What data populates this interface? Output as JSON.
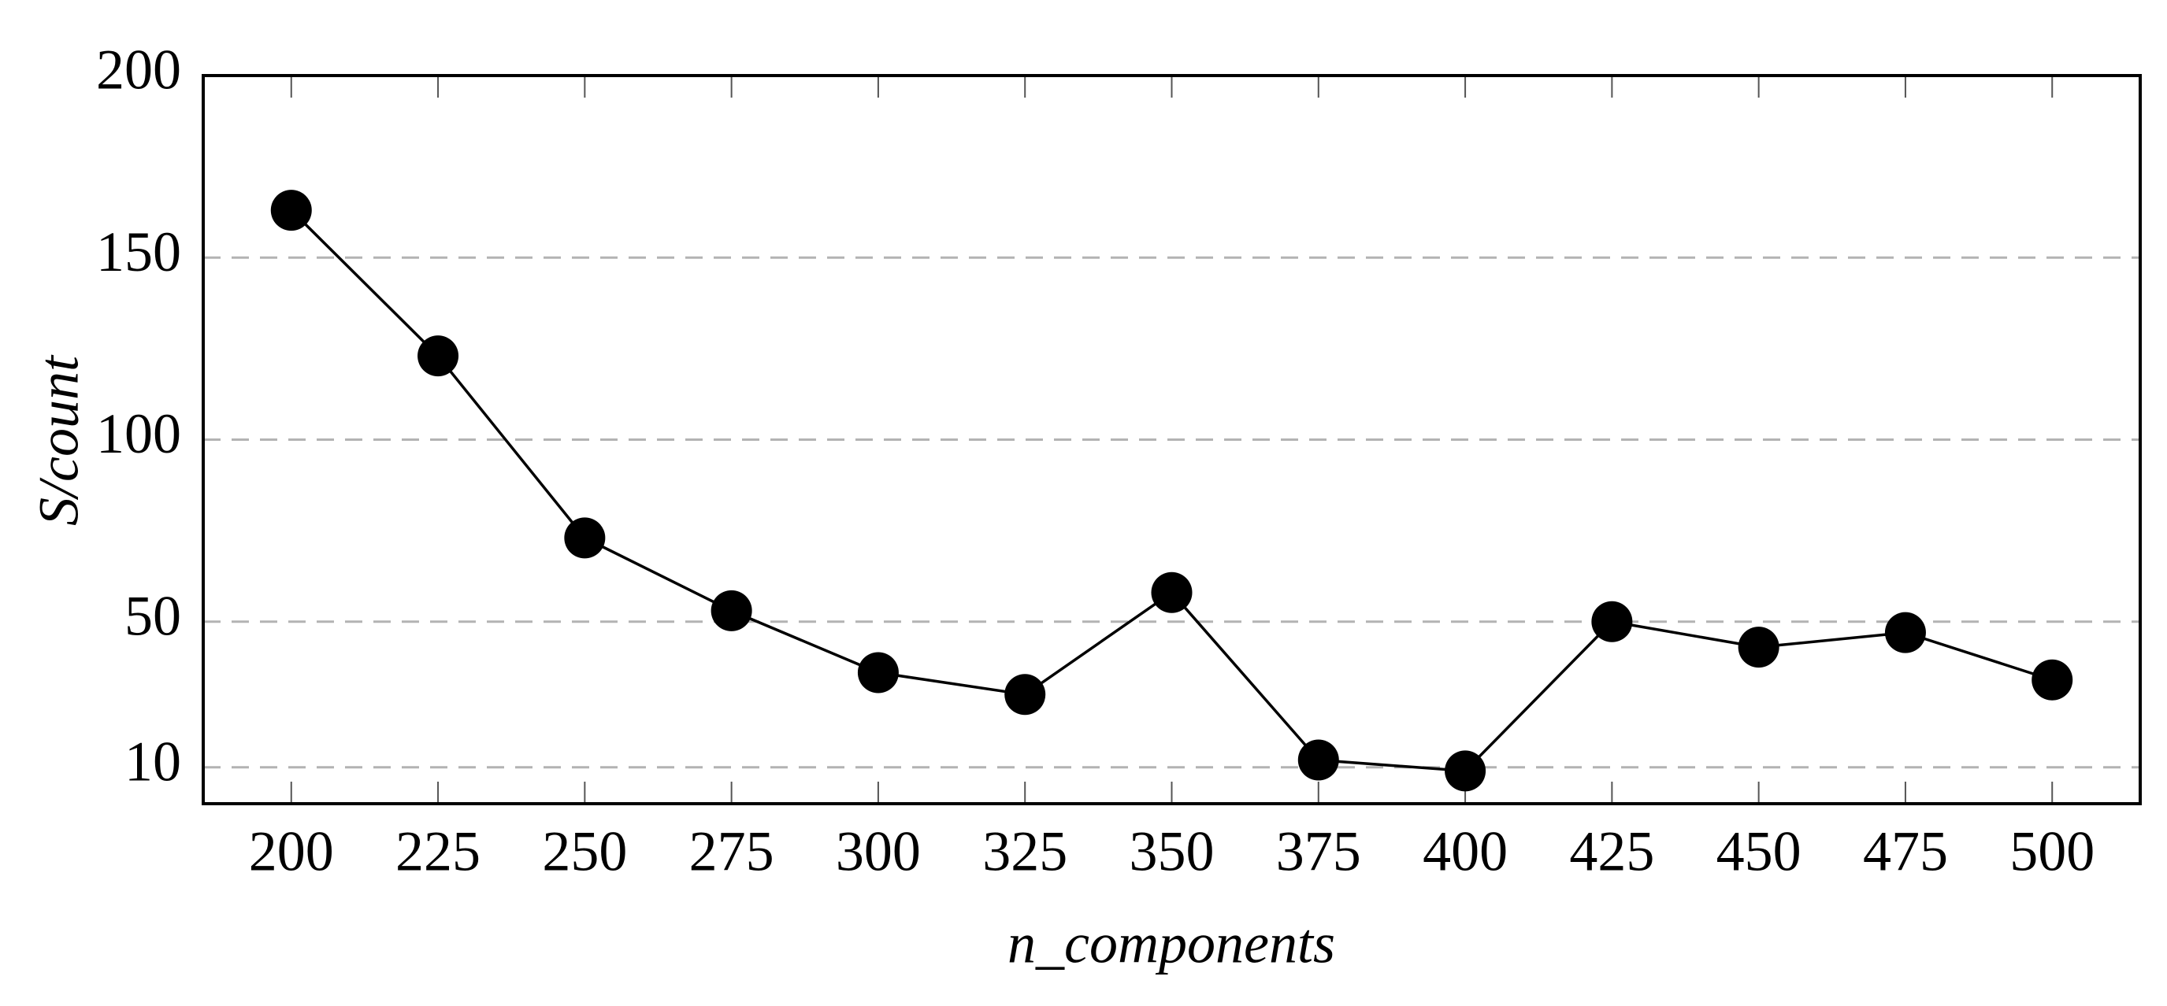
{
  "chart_data": {
    "type": "line",
    "xlabel": "n_components",
    "ylabel": "S/count",
    "x": [
      200,
      225,
      250,
      275,
      300,
      325,
      350,
      375,
      400,
      425,
      450,
      475,
      500
    ],
    "series": [
      {
        "color": "#000000",
        "values": [
          163,
          123,
          73,
          53,
          36,
          30,
          58,
          12,
          9,
          50,
          43,
          47,
          34
        ]
      }
    ],
    "xlim": [
      185,
      515
    ],
    "ylim": [
      0,
      200
    ],
    "xticks": [
      200,
      225,
      250,
      275,
      300,
      325,
      350,
      375,
      400,
      425,
      450,
      475,
      500
    ],
    "yticks": [
      10,
      50,
      100,
      150,
      200
    ],
    "grid": true
  }
}
